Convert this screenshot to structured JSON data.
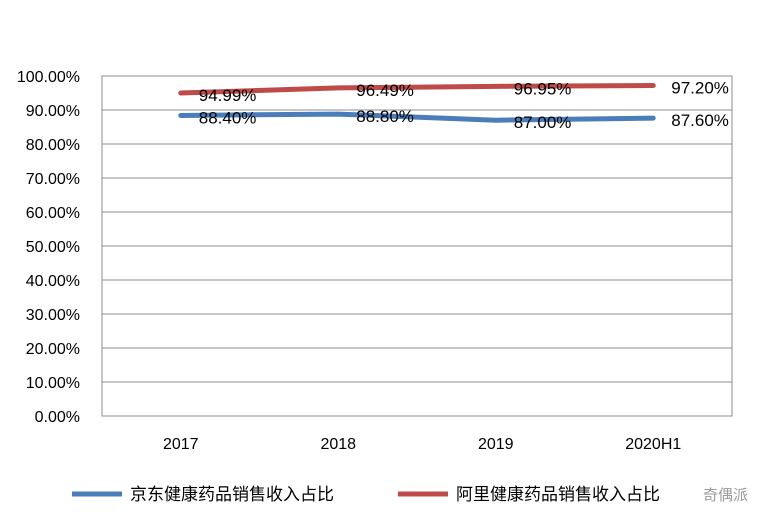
{
  "chart_data": {
    "type": "line",
    "categories": [
      "2017",
      "2018",
      "2019",
      "2020H1"
    ],
    "series": [
      {
        "name": "京东健康药品销售收入占比",
        "color": "#4a7ebb",
        "values": [
          88.4,
          88.8,
          87.0,
          87.6
        ],
        "labels": [
          "88.40%",
          "88.80%",
          "87.00%",
          "87.60%"
        ]
      },
      {
        "name": "阿里健康药品销售收入占比",
        "color": "#be4b48",
        "values": [
          94.99,
          96.49,
          96.95,
          97.2
        ],
        "labels": [
          "94.99%",
          "96.49%",
          "96.95%",
          "97.20%"
        ]
      }
    ],
    "ylim": [
      0,
      100
    ],
    "yticks": [
      0,
      10,
      20,
      30,
      40,
      50,
      60,
      70,
      80,
      90,
      100
    ],
    "ytick_labels": [
      "0.00%",
      "10.00%",
      "20.00%",
      "30.00%",
      "40.00%",
      "50.00%",
      "60.00%",
      "70.00%",
      "80.00%",
      "90.00%",
      "100.00%"
    ],
    "grid": true,
    "legend": "bottom"
  },
  "watermark": "奇偶派"
}
